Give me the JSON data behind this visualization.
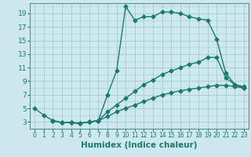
{
  "xlabel": "Humidex (Indice chaleur)",
  "bg_color": "#cde8ee",
  "line_color": "#1a7a6e",
  "grid_color": "#aacdd6",
  "xlim": [
    -0.5,
    23.5
  ],
  "ylim": [
    2.0,
    20.5
  ],
  "xticks": [
    0,
    1,
    2,
    3,
    4,
    5,
    6,
    7,
    8,
    9,
    10,
    11,
    12,
    13,
    14,
    15,
    16,
    17,
    18,
    19,
    20,
    21,
    22,
    23
  ],
  "yticks": [
    3,
    5,
    7,
    9,
    11,
    13,
    15,
    17,
    19
  ],
  "line1_x": [
    0,
    1,
    2,
    3,
    4,
    5,
    6,
    7,
    8,
    9,
    10,
    11,
    12,
    13,
    14,
    15,
    16,
    17,
    18,
    19,
    20,
    21,
    22,
    23
  ],
  "line1_y": [
    5,
    4,
    3.2,
    2.9,
    2.9,
    2.8,
    3.0,
    3.2,
    7.0,
    10.5,
    20.0,
    18.0,
    18.5,
    18.5,
    19.2,
    19.2,
    19.0,
    18.5,
    18.2,
    18.0,
    15.2,
    10.2,
    8.5,
    8.2
  ],
  "line2_x": [
    2,
    3,
    4,
    5,
    6,
    7,
    8,
    9,
    10,
    11,
    12,
    13,
    14,
    15,
    16,
    17,
    18,
    19,
    20,
    21,
    22,
    23
  ],
  "line2_y": [
    3.2,
    2.9,
    2.9,
    2.8,
    3.0,
    3.2,
    4.5,
    5.5,
    6.5,
    7.5,
    8.5,
    9.2,
    10.0,
    10.5,
    11.0,
    11.5,
    11.8,
    12.5,
    12.5,
    9.5,
    8.5,
    8.0
  ],
  "line3_x": [
    2,
    3,
    4,
    5,
    6,
    7,
    8,
    9,
    10,
    11,
    12,
    13,
    14,
    15,
    16,
    17,
    18,
    19,
    20,
    21,
    22,
    23
  ],
  "line3_y": [
    3.2,
    2.9,
    2.9,
    2.8,
    3.0,
    3.2,
    3.8,
    4.5,
    5.0,
    5.5,
    6.0,
    6.5,
    7.0,
    7.3,
    7.6,
    7.8,
    8.0,
    8.2,
    8.4,
    8.4,
    8.2,
    8.0
  ],
  "xlabel_fontsize": 7.5,
  "tick_fontsize_x": 5.5,
  "tick_fontsize_y": 6.5,
  "marker": "D",
  "marker_size": 2.5,
  "line_width": 1.0
}
